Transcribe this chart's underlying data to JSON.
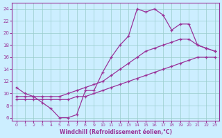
{
  "bg_color": "#cceeff",
  "grid_color": "#99cccc",
  "line_color": "#993399",
  "marker_color": "#993399",
  "xlabel": "Windchill (Refroidissement éolien,°C)",
  "xlabel_color": "#993399",
  "xtick_color": "#993399",
  "ytick_color": "#993399",
  "xlim": [
    -0.5,
    23.5
  ],
  "ylim": [
    5.5,
    25.0
  ],
  "yticks": [
    6,
    8,
    10,
    12,
    14,
    16,
    18,
    20,
    22,
    24
  ],
  "xticks": [
    0,
    1,
    2,
    3,
    4,
    5,
    6,
    7,
    8,
    9,
    10,
    11,
    12,
    13,
    14,
    15,
    16,
    17,
    18,
    19,
    20,
    21,
    22,
    23
  ],
  "line1_x": [
    0,
    1,
    2,
    3,
    4,
    5,
    6,
    7,
    8,
    9,
    10,
    11,
    12,
    13,
    14,
    15,
    16,
    17,
    18,
    19,
    20,
    21,
    22,
    23
  ],
  "line1_y": [
    11.0,
    10.0,
    9.5,
    8.5,
    7.5,
    6.0,
    6.0,
    6.5,
    10.5,
    10.5,
    13.5,
    16.0,
    18.0,
    19.5,
    24.0,
    23.5,
    24.0,
    23.0,
    20.5,
    21.5,
    21.5,
    18.0,
    17.5,
    17.0
  ],
  "line2_x": [
    0,
    1,
    2,
    3,
    4,
    5,
    6,
    7,
    8,
    9,
    10,
    11,
    12,
    13,
    14,
    15,
    16,
    17,
    18,
    19,
    20,
    21,
    22,
    23
  ],
  "line2_y": [
    9.5,
    9.5,
    9.5,
    9.5,
    9.5,
    9.5,
    10.0,
    10.5,
    11.0,
    11.5,
    12.0,
    13.0,
    14.0,
    15.0,
    16.0,
    17.0,
    17.5,
    18.0,
    18.5,
    19.0,
    19.0,
    18.0,
    17.5,
    17.0
  ],
  "line3_x": [
    0,
    1,
    2,
    3,
    4,
    5,
    6,
    7,
    8,
    9,
    10,
    11,
    12,
    13,
    14,
    15,
    16,
    17,
    18,
    19,
    20,
    21,
    22,
    23
  ],
  "line3_y": [
    9.0,
    9.0,
    9.0,
    9.0,
    9.0,
    9.0,
    9.0,
    9.5,
    9.5,
    10.0,
    10.5,
    11.0,
    11.5,
    12.0,
    12.5,
    13.0,
    13.5,
    14.0,
    14.5,
    15.0,
    15.5,
    16.0,
    16.0,
    16.0
  ]
}
